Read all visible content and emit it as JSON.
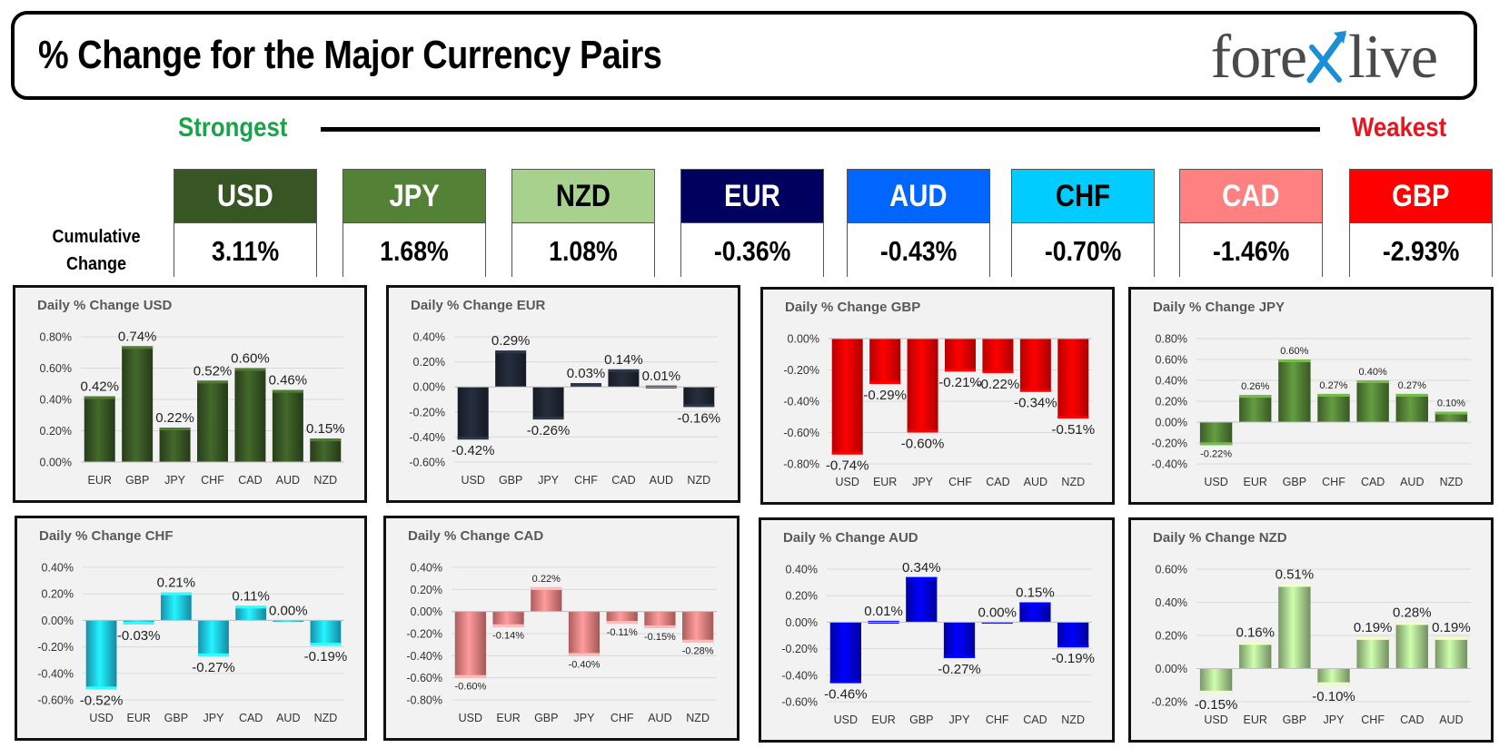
{
  "header": {
    "title": "% Change for the Major Currency Pairs",
    "logo_left": "fore",
    "logo_right": "live"
  },
  "ranking": {
    "strongest_label": "Strongest",
    "weakest_label": "Weakest",
    "cumulative_label_line1": "Cumulative",
    "cumulative_label_line2": "Change"
  },
  "tiles": [
    {
      "currency": "USD",
      "value": "3.11%",
      "bg": "#375623",
      "fg": "#ffffff"
    },
    {
      "currency": "JPY",
      "value": "1.68%",
      "bg": "#538135",
      "fg": "#ffffff"
    },
    {
      "currency": "NZD",
      "value": "1.08%",
      "bg": "#a9d18e",
      "fg": "#000000"
    },
    {
      "currency": "EUR",
      "value": "-0.36%",
      "bg": "#00005e",
      "fg": "#ffffff"
    },
    {
      "currency": "AUD",
      "value": "-0.43%",
      "bg": "#0066ff",
      "fg": "#ffffff"
    },
    {
      "currency": "CHF",
      "value": "-0.70%",
      "bg": "#00ccff",
      "fg": "#000000"
    },
    {
      "currency": "CAD",
      "value": "-1.46%",
      "bg": "#ff8080",
      "fg": "#ffffff"
    },
    {
      "currency": "GBP",
      "value": "-2.93%",
      "bg": "#ff0000",
      "fg": "#ffffff"
    }
  ],
  "chart_data": [
    {
      "type": "bar",
      "title": "Daily % Change USD",
      "color": "#375623",
      "categories": [
        "EUR",
        "GBP",
        "JPY",
        "CHF",
        "CAD",
        "AUD",
        "NZD"
      ],
      "values": [
        0.42,
        0.74,
        0.22,
        0.52,
        0.6,
        0.46,
        0.15
      ],
      "labels": [
        "0.42%",
        "0.74%",
        "0.22%",
        "0.52%",
        "0.60%",
        "0.46%",
        "0.15%"
      ],
      "ylim": [
        0.0,
        0.8
      ],
      "yticks": [
        "0.00%",
        "0.20%",
        "0.40%",
        "0.60%",
        "0.80%"
      ],
      "grid": true
    },
    {
      "type": "bar",
      "title": "Daily % Change EUR",
      "color": "#1f2633",
      "categories": [
        "USD",
        "GBP",
        "JPY",
        "CHF",
        "CAD",
        "AUD",
        "NZD"
      ],
      "values": [
        -0.42,
        0.29,
        -0.26,
        0.03,
        0.14,
        0.01,
        -0.16
      ],
      "labels": [
        "-0.42%",
        "0.29%",
        "-0.26%",
        "0.03%",
        "0.14%",
        "0.01%",
        "-0.16%"
      ],
      "ylim": [
        -0.6,
        0.4
      ],
      "yticks": [
        "-0.60%",
        "-0.40%",
        "-0.20%",
        "0.00%",
        "0.20%",
        "0.40%"
      ],
      "grid": true
    },
    {
      "type": "bar",
      "title": "Daily % Change GBP",
      "color": "#ff0000",
      "categories": [
        "USD",
        "EUR",
        "JPY",
        "CHF",
        "CAD",
        "AUD",
        "NZD"
      ],
      "values": [
        -0.74,
        -0.29,
        -0.6,
        -0.21,
        -0.22,
        -0.34,
        -0.51
      ],
      "labels": [
        "-0.74%",
        "-0.29%",
        "-0.60%",
        "-0.21%",
        "-0.22%",
        "-0.34%",
        "-0.51%"
      ],
      "ylim": [
        -0.8,
        0.0
      ],
      "yticks": [
        "-0.80%",
        "-0.60%",
        "-0.40%",
        "-0.20%",
        "0.00%"
      ],
      "grid": true
    },
    {
      "type": "bar",
      "title": "Daily % Change JPY",
      "color": "#538135",
      "categories": [
        "USD",
        "EUR",
        "GBP",
        "CHF",
        "CAD",
        "AUD",
        "NZD"
      ],
      "values": [
        -0.22,
        0.26,
        0.6,
        0.27,
        0.4,
        0.27,
        0.1
      ],
      "labels": [
        "-0.22%",
        "0.26%",
        "0.60%",
        "0.27%",
        "0.40%",
        "0.27%",
        "0.10%"
      ],
      "ylim": [
        -0.4,
        0.8
      ],
      "yticks": [
        "-0.40%",
        "-0.20%",
        "0.00%",
        "0.20%",
        "0.40%",
        "0.60%",
        "0.80%"
      ],
      "grid": true
    },
    {
      "type": "bar",
      "title": "Daily % Change CHF",
      "color": "#1ec8f0",
      "categories": [
        "USD",
        "EUR",
        "GBP",
        "JPY",
        "CAD",
        "AUD",
        "NZD"
      ],
      "values": [
        -0.52,
        -0.03,
        0.21,
        -0.27,
        0.11,
        0.0,
        -0.19
      ],
      "labels": [
        "-0.52%",
        "-0.03%",
        "0.21%",
        "-0.27%",
        "0.11%",
        "0.00%",
        "-0.19%"
      ],
      "ylim": [
        -0.6,
        0.4
      ],
      "yticks": [
        "-0.60%",
        "-0.40%",
        "-0.20%",
        "0.00%",
        "0.20%",
        "0.40%"
      ],
      "grid": true
    },
    {
      "type": "bar",
      "title": "Daily % Change CAD",
      "color": "#f08080",
      "categories": [
        "USD",
        "EUR",
        "GBP",
        "JPY",
        "CHF",
        "AUD",
        "NZD"
      ],
      "values": [
        -0.6,
        -0.14,
        0.22,
        -0.4,
        -0.11,
        -0.15,
        -0.28
      ],
      "labels": [
        "-0.60%",
        "-0.14%",
        "0.22%",
        "-0.40%",
        "-0.11%",
        "-0.15%",
        "-0.28%"
      ],
      "ylim": [
        -0.8,
        0.4
      ],
      "yticks": [
        "-0.80%",
        "-0.60%",
        "-0.40%",
        "-0.20%",
        "0.00%",
        "0.20%",
        "0.40%"
      ],
      "grid": true
    },
    {
      "type": "bar",
      "title": "Daily % Change AUD",
      "color": "#0000e6",
      "categories": [
        "USD",
        "EUR",
        "GBP",
        "JPY",
        "CHF",
        "CAD",
        "NZD"
      ],
      "values": [
        -0.46,
        0.01,
        0.34,
        -0.27,
        0.0,
        0.15,
        -0.19
      ],
      "labels": [
        "-0.46%",
        "0.01%",
        "0.34%",
        "-0.27%",
        "0.00%",
        "0.15%",
        "-0.19%"
      ],
      "ylim": [
        -0.6,
        0.4
      ],
      "yticks": [
        "-0.60%",
        "-0.40%",
        "-0.20%",
        "0.00%",
        "0.20%",
        "0.40%"
      ],
      "grid": true
    },
    {
      "type": "bar",
      "title": "Daily % Change NZD",
      "color": "#a9d18e",
      "categories": [
        "USD",
        "EUR",
        "GBP",
        "JPY",
        "CHF",
        "CAD",
        "AUD"
      ],
      "values": [
        -0.15,
        0.16,
        0.51,
        -0.1,
        0.19,
        0.28,
        0.19
      ],
      "labels": [
        "-0.15%",
        "0.16%",
        "0.51%",
        "-0.10%",
        "0.19%",
        "0.28%",
        "0.19%"
      ],
      "ylim": [
        -0.2,
        0.6
      ],
      "yticks": [
        "-0.20%",
        "0.00%",
        "0.20%",
        "0.40%",
        "0.60%"
      ],
      "grid": true
    }
  ]
}
